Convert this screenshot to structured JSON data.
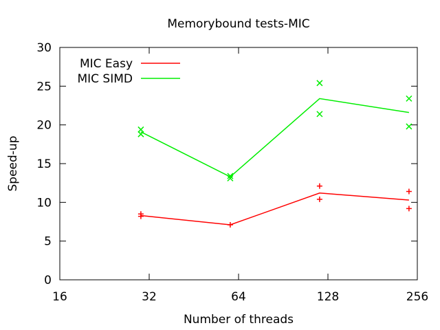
{
  "chart_data": {
    "type": "line",
    "title": "Memorybound tests-MIC",
    "xlabel": "Number of threads",
    "ylabel": "Speed-up",
    "x_scale": "log2",
    "xlim": [
      16,
      256
    ],
    "ylim": [
      0,
      30
    ],
    "x_ticks": [
      16,
      32,
      64,
      128,
      256
    ],
    "x_tick_labels": [
      "16",
      "32",
      "64",
      "128",
      "256"
    ],
    "y_ticks": [
      0,
      5,
      10,
      15,
      20,
      25,
      30
    ],
    "y_tick_labels": [
      "0",
      "5",
      "10",
      "15",
      "20",
      "25",
      "30"
    ],
    "grid": false,
    "legend_position": "top-left",
    "series": [
      {
        "name": "MIC Easy",
        "color": "#ff0000",
        "marker": "plus",
        "x": [
          30,
          60,
          120,
          240
        ],
        "values": [
          8.3,
          7.1,
          11.2,
          10.3
        ],
        "points": [
          {
            "x": 30,
            "y": 8.5
          },
          {
            "x": 30,
            "y": 8.2
          },
          {
            "x": 60,
            "y": 7.1
          },
          {
            "x": 120,
            "y": 12.1
          },
          {
            "x": 120,
            "y": 10.4
          },
          {
            "x": 240,
            "y": 11.4
          },
          {
            "x": 240,
            "y": 9.2
          }
        ]
      },
      {
        "name": "MIC SIMD",
        "color": "#00ee00",
        "marker": "cross",
        "x": [
          30,
          60,
          120,
          240
        ],
        "values": [
          19.1,
          13.3,
          23.4,
          21.6
        ],
        "points": [
          {
            "x": 30,
            "y": 19.4
          },
          {
            "x": 30,
            "y": 18.8
          },
          {
            "x": 60,
            "y": 13.4
          },
          {
            "x": 60,
            "y": 13.1
          },
          {
            "x": 120,
            "y": 25.4
          },
          {
            "x": 120,
            "y": 21.4
          },
          {
            "x": 240,
            "y": 23.4
          },
          {
            "x": 240,
            "y": 19.8
          }
        ]
      }
    ]
  }
}
